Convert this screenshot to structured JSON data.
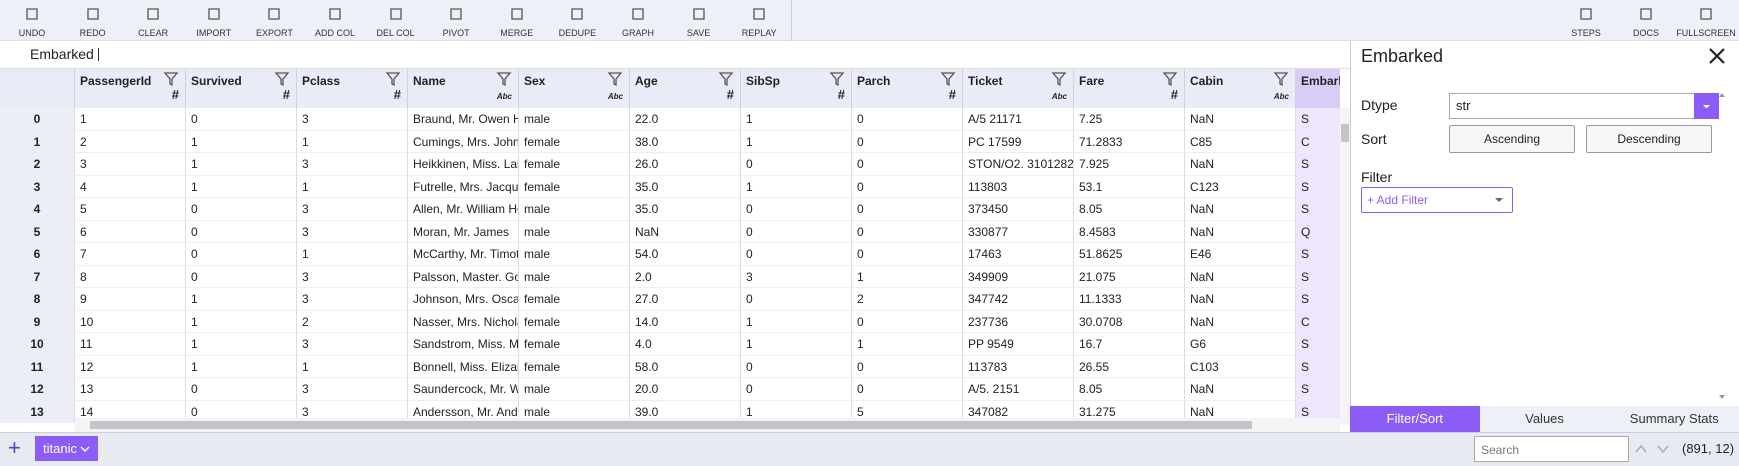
{
  "toolbar": {
    "left": [
      "UNDO",
      "REDO",
      "CLEAR",
      "IMPORT",
      "EXPORT",
      "ADD COL",
      "DEL COL",
      "PIVOT",
      "MERGE",
      "DEDUPE",
      "GRAPH",
      "SAVE",
      "REPLAY"
    ],
    "right": [
      "STEPS",
      "DOCS",
      "FULLSCREEN"
    ]
  },
  "formula_bar": {
    "column": "Embarked"
  },
  "table": {
    "columns": [
      {
        "name": "PassengerId",
        "kind": "#"
      },
      {
        "name": "Survived",
        "kind": "#"
      },
      {
        "name": "Pclass",
        "kind": "#"
      },
      {
        "name": "Name",
        "kind": "Abc"
      },
      {
        "name": "Sex",
        "kind": "Abc"
      },
      {
        "name": "Age",
        "kind": "#"
      },
      {
        "name": "SibSp",
        "kind": "#"
      },
      {
        "name": "Parch",
        "kind": "#"
      },
      {
        "name": "Ticket",
        "kind": "Abc"
      },
      {
        "name": "Fare",
        "kind": "#"
      },
      {
        "name": "Cabin",
        "kind": "Abc"
      },
      {
        "name": "Embarked"
      }
    ],
    "index": [
      "0",
      "1",
      "2",
      "3",
      "4",
      "5",
      "6",
      "7",
      "8",
      "9",
      "10",
      "11",
      "12",
      "13"
    ],
    "rows": [
      [
        "1",
        "0",
        "3",
        "Braund, Mr. Owen Ha",
        "male",
        "22.0",
        "1",
        "0",
        "A/5 21171",
        "7.25",
        "NaN",
        "S"
      ],
      [
        "2",
        "1",
        "1",
        "Cumings, Mrs. John I",
        "female",
        "38.0",
        "1",
        "0",
        "PC 17599",
        "71.2833",
        "C85",
        "C"
      ],
      [
        "3",
        "1",
        "3",
        "Heikkinen, Miss. Lain",
        "female",
        "26.0",
        "0",
        "0",
        "STON/O2. 3101282",
        "7.925",
        "NaN",
        "S"
      ],
      [
        "4",
        "1",
        "1",
        "Futrelle, Mrs. Jacque",
        "female",
        "35.0",
        "1",
        "0",
        "113803",
        "53.1",
        "C123",
        "S"
      ],
      [
        "5",
        "0",
        "3",
        "Allen, Mr. William He",
        "male",
        "35.0",
        "0",
        "0",
        "373450",
        "8.05",
        "NaN",
        "S"
      ],
      [
        "6",
        "0",
        "3",
        "Moran, Mr. James",
        "male",
        "NaN",
        "0",
        "0",
        "330877",
        "8.4583",
        "NaN",
        "Q"
      ],
      [
        "7",
        "0",
        "1",
        "McCarthy, Mr. Timoth",
        "male",
        "54.0",
        "0",
        "0",
        "17463",
        "51.8625",
        "E46",
        "S"
      ],
      [
        "8",
        "0",
        "3",
        "Palsson, Master. Gos",
        "male",
        "2.0",
        "3",
        "1",
        "349909",
        "21.075",
        "NaN",
        "S"
      ],
      [
        "9",
        "1",
        "3",
        "Johnson, Mrs. Oscar",
        "female",
        "27.0",
        "0",
        "2",
        "347742",
        "11.1333",
        "NaN",
        "S"
      ],
      [
        "10",
        "1",
        "2",
        "Nasser, Mrs. Nichola",
        "female",
        "14.0",
        "1",
        "0",
        "237736",
        "30.0708",
        "NaN",
        "C"
      ],
      [
        "11",
        "1",
        "3",
        "Sandstrom, Miss. Ma",
        "female",
        "4.0",
        "1",
        "1",
        "PP 9549",
        "16.7",
        "G6",
        "S"
      ],
      [
        "12",
        "1",
        "1",
        "Bonnell, Miss. Elizab",
        "female",
        "58.0",
        "0",
        "0",
        "113783",
        "26.55",
        "C103",
        "S"
      ],
      [
        "13",
        "0",
        "3",
        "Saundercock, Mr. Wil",
        "male",
        "20.0",
        "0",
        "0",
        "A/5. 2151",
        "8.05",
        "NaN",
        "S"
      ],
      [
        "14",
        "0",
        "3",
        "Andersson, Mr. Ande",
        "male",
        "39.0",
        "1",
        "5",
        "347082",
        "31.275",
        "NaN",
        "S"
      ]
    ]
  },
  "panel": {
    "title": "Embarked",
    "dtype_label": "Dtype",
    "dtype": "str",
    "sort_label": "Sort",
    "sort_options": [
      "Ascending",
      "Descending"
    ],
    "filter_label": "Filter",
    "add_filter": "+ Add Filter",
    "tabs": [
      "Filter/Sort",
      "Values",
      "Summary Stats"
    ]
  },
  "footer": {
    "add": "+",
    "sheet": "titanic",
    "search_placeholder": "Search",
    "shape": "(891, 12)"
  }
}
